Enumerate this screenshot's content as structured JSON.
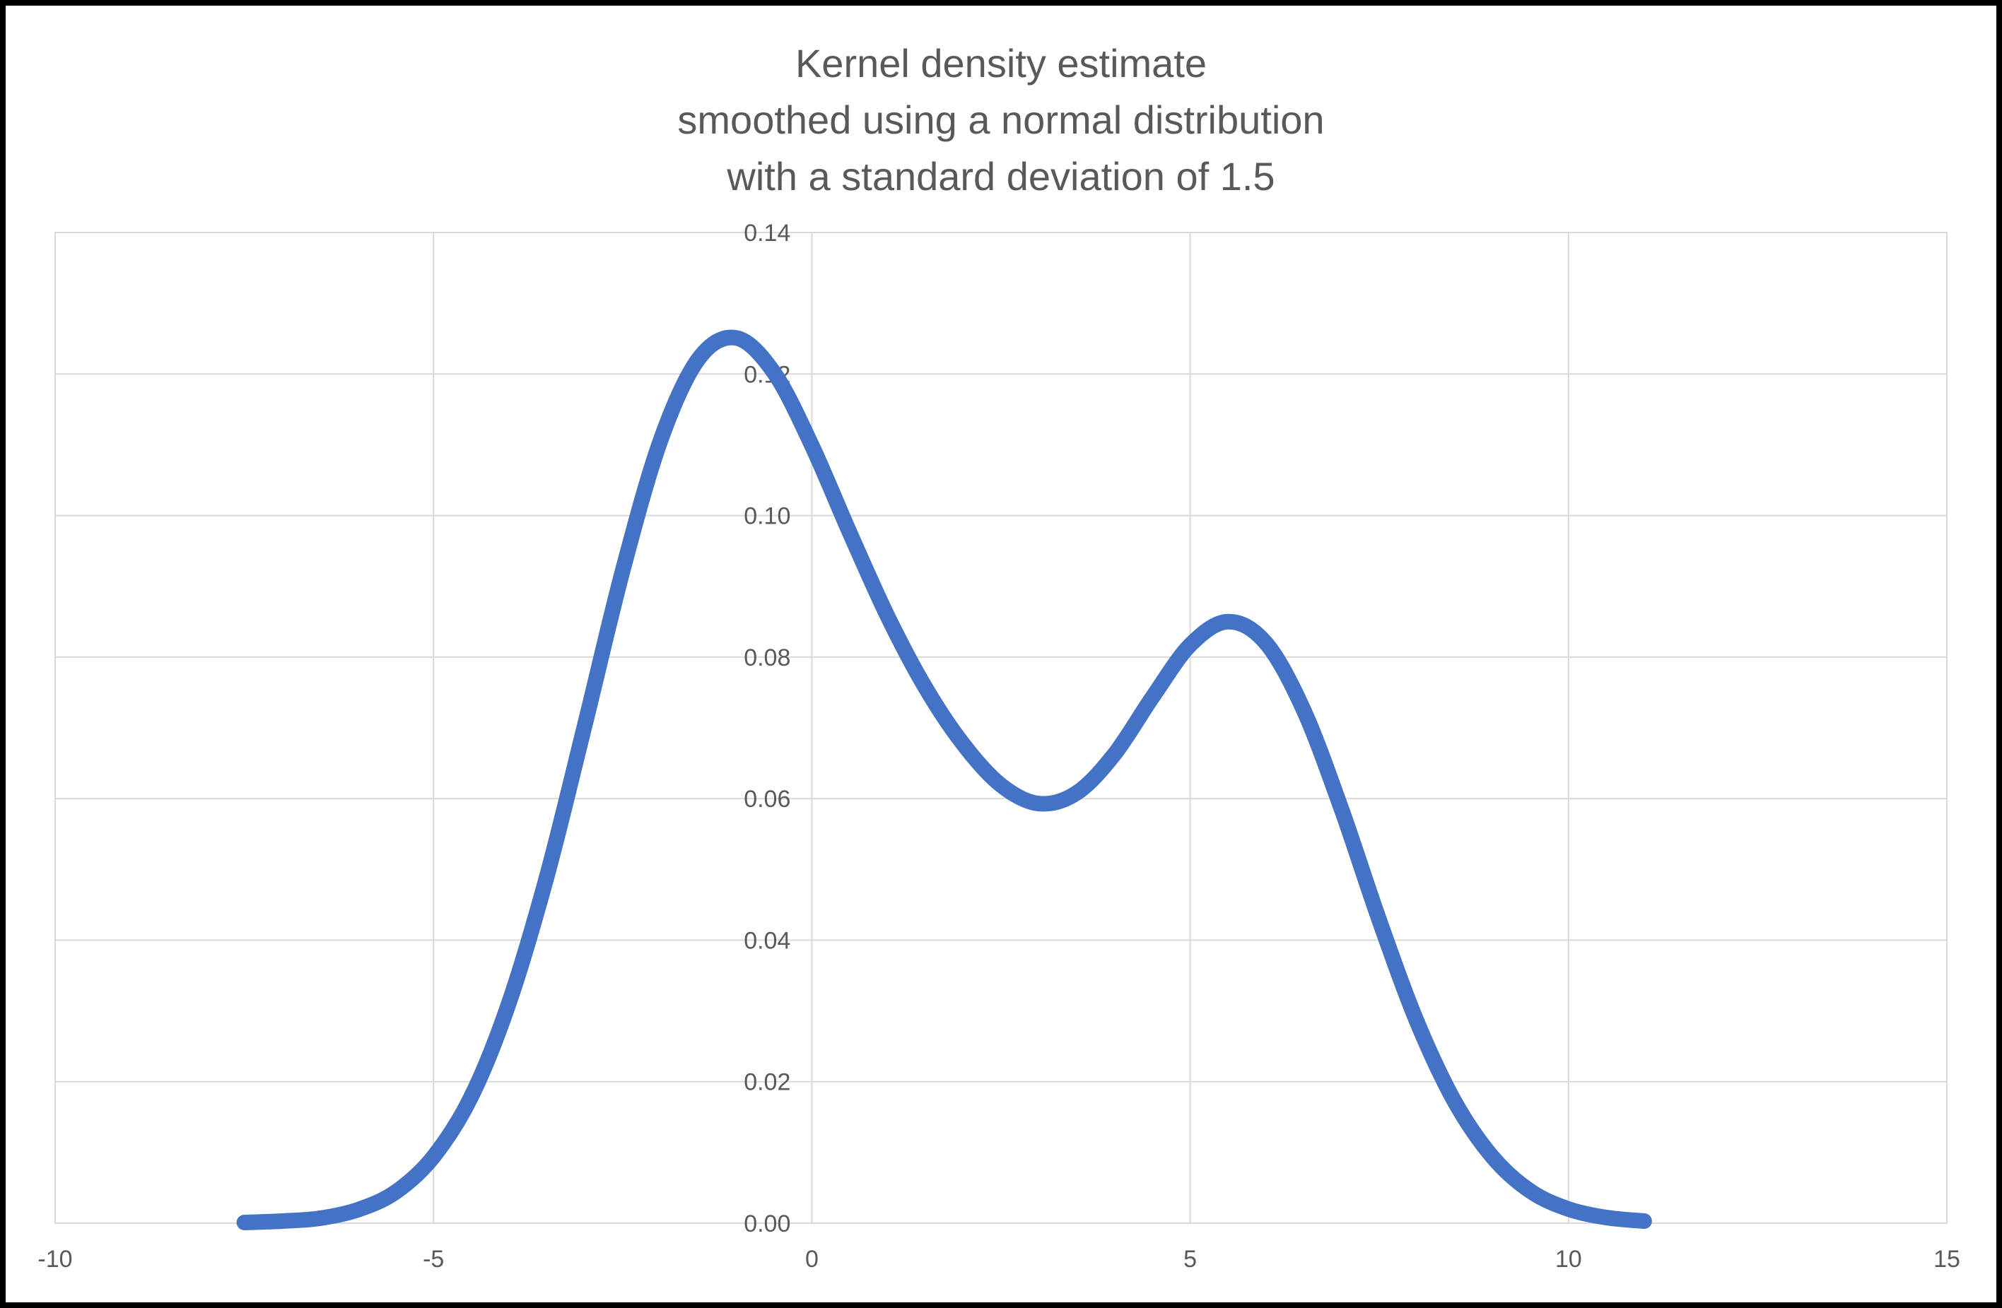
{
  "chart_data": {
    "type": "line",
    "title_lines": [
      "Kernel density estimate",
      "smoothed using a normal distribution",
      "with a standard deviation of 1.5"
    ],
    "xlabel": "",
    "ylabel": "",
    "xlim": [
      -10,
      15
    ],
    "ylim": [
      0,
      0.14
    ],
    "grid": true,
    "legend_position": "none",
    "x_ticks": [
      {
        "value": -10,
        "label": "-10"
      },
      {
        "value": -5,
        "label": "-5"
      },
      {
        "value": 0,
        "label": "0"
      },
      {
        "value": 5,
        "label": "5"
      },
      {
        "value": 10,
        "label": "10"
      },
      {
        "value": 15,
        "label": "15"
      }
    ],
    "y_ticks": [
      {
        "value": 0.0,
        "label": "0.00"
      },
      {
        "value": 0.02,
        "label": "0.02"
      },
      {
        "value": 0.04,
        "label": "0.04"
      },
      {
        "value": 0.06,
        "label": "0.06"
      },
      {
        "value": 0.08,
        "label": "0.08"
      },
      {
        "value": 0.1,
        "label": "0.10"
      },
      {
        "value": 0.12,
        "label": "0.12"
      },
      {
        "value": 0.14,
        "label": "0.14"
      }
    ],
    "series": [
      {
        "name": "kernel-density-estimate",
        "color": "#4472C4",
        "stroke_width": 22,
        "points": [
          [
            -7.5,
            0.0001
          ],
          [
            -7.0,
            0.0003
          ],
          [
            -6.5,
            0.0007
          ],
          [
            -6.0,
            0.0019
          ],
          [
            -5.5,
            0.0044
          ],
          [
            -5.0,
            0.0094
          ],
          [
            -4.5,
            0.0179
          ],
          [
            -4.0,
            0.0312
          ],
          [
            -3.5,
            0.0491
          ],
          [
            -3.0,
            0.0704
          ],
          [
            -2.5,
            0.0922
          ],
          [
            -2.0,
            0.1106
          ],
          [
            -1.5,
            0.1221
          ],
          [
            -1.0,
            0.1251
          ],
          [
            -0.5,
            0.1202
          ],
          [
            0.0,
            0.1099
          ],
          [
            0.5,
            0.0976
          ],
          [
            1.0,
            0.0858
          ],
          [
            1.5,
            0.0757
          ],
          [
            2.0,
            0.0677
          ],
          [
            2.5,
            0.0619
          ],
          [
            3.0,
            0.0593
          ],
          [
            3.5,
            0.0608
          ],
          [
            4.0,
            0.0663
          ],
          [
            4.5,
            0.0743
          ],
          [
            5.0,
            0.0817
          ],
          [
            5.5,
            0.085
          ],
          [
            6.0,
            0.082
          ],
          [
            6.5,
            0.0725
          ],
          [
            7.0,
            0.0585
          ],
          [
            7.5,
            0.0428
          ],
          [
            8.0,
            0.0284
          ],
          [
            8.5,
            0.0171
          ],
          [
            9.0,
            0.0093
          ],
          [
            9.5,
            0.0045
          ],
          [
            10.0,
            0.002
          ],
          [
            10.5,
            0.0008
          ],
          [
            11.0,
            0.0003
          ]
        ]
      }
    ]
  },
  "styles": {
    "line_color": "#4472C4",
    "grid_color": "#d9d9d9",
    "text_color": "#595959",
    "background": "#ffffff",
    "frame_color": "#000000"
  }
}
